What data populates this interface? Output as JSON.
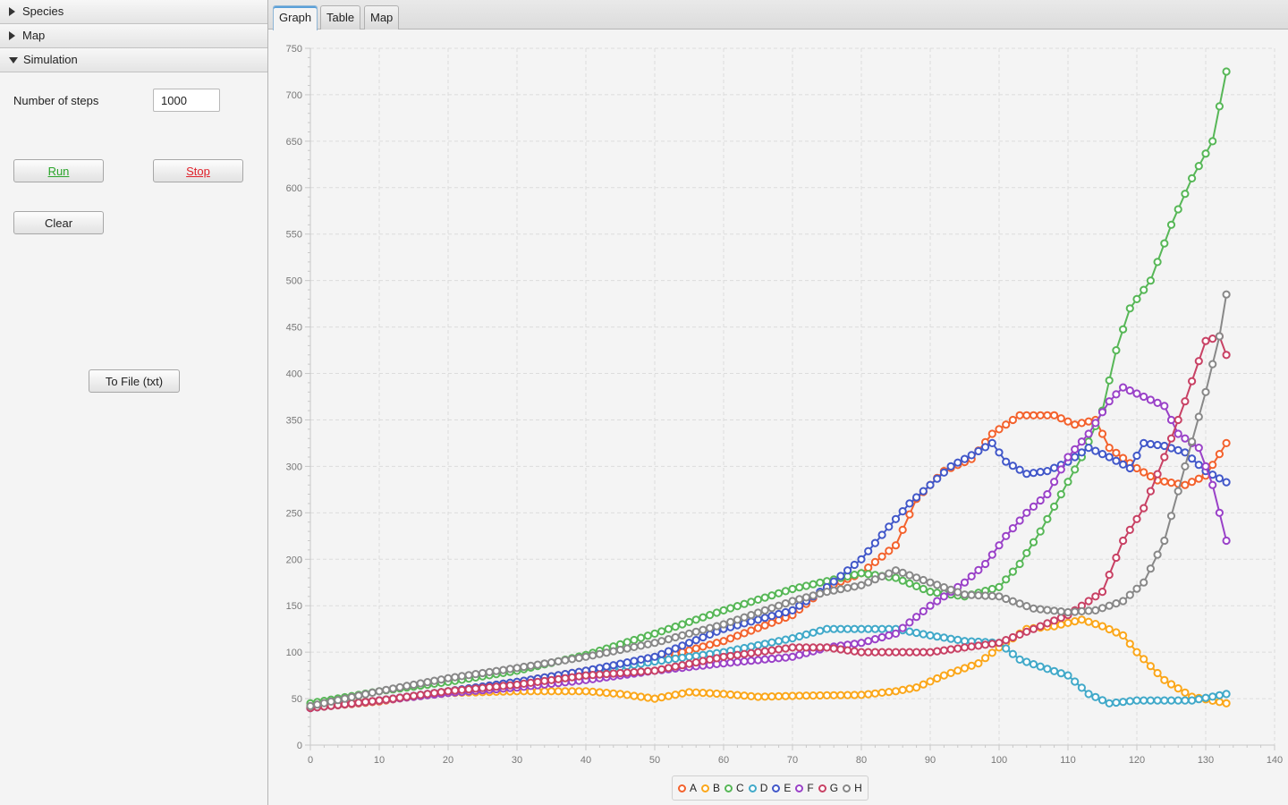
{
  "left": {
    "accordion": [
      {
        "label": "Species",
        "expanded": false
      },
      {
        "label": "Map",
        "expanded": false
      },
      {
        "label": "Simulation",
        "expanded": true
      }
    ],
    "simulation": {
      "steps_label": "Number of steps",
      "steps_value": "1000",
      "run_label": "Run",
      "stop_label": "Stop",
      "clear_label": "Clear",
      "tofile_label": "To File (txt)"
    }
  },
  "tabs": [
    {
      "label": "Graph",
      "active": true
    },
    {
      "label": "Table",
      "active": false
    },
    {
      "label": "Map",
      "active": false
    }
  ],
  "chart_data": {
    "type": "line",
    "title": "",
    "xlabel": "",
    "ylabel": "",
    "xlim": [
      0,
      140
    ],
    "ylim": [
      0,
      750
    ],
    "x_ticks": [
      0,
      10,
      20,
      30,
      40,
      50,
      60,
      70,
      80,
      90,
      100,
      110,
      120,
      130,
      140
    ],
    "y_ticks": [
      0,
      50,
      100,
      150,
      200,
      250,
      300,
      350,
      400,
      450,
      500,
      550,
      600,
      650,
      700,
      750
    ],
    "grid": true,
    "legend_position": "bottom-center",
    "series": [
      {
        "name": "A",
        "color": "#f3622d",
        "points": [
          [
            0,
            40
          ],
          [
            10,
            47
          ],
          [
            20,
            58
          ],
          [
            30,
            68
          ],
          [
            40,
            80
          ],
          [
            50,
            92
          ],
          [
            60,
            112
          ],
          [
            70,
            140
          ],
          [
            75,
            170
          ],
          [
            80,
            185
          ],
          [
            85,
            215
          ],
          [
            88,
            265
          ],
          [
            92,
            295
          ],
          [
            96,
            308
          ],
          [
            99,
            335
          ],
          [
            103,
            355
          ],
          [
            108,
            355
          ],
          [
            111,
            345
          ],
          [
            114,
            350
          ],
          [
            116,
            320
          ],
          [
            120,
            298
          ],
          [
            123,
            285
          ],
          [
            127,
            280
          ],
          [
            130,
            290
          ],
          [
            133,
            325
          ]
        ]
      },
      {
        "name": "B",
        "color": "#fba71b",
        "points": [
          [
            0,
            42
          ],
          [
            10,
            48
          ],
          [
            20,
            56
          ],
          [
            30,
            58
          ],
          [
            40,
            58
          ],
          [
            45,
            55
          ],
          [
            50,
            50
          ],
          [
            55,
            57
          ],
          [
            60,
            55
          ],
          [
            65,
            52
          ],
          [
            70,
            53
          ],
          [
            80,
            54
          ],
          [
            85,
            58
          ],
          [
            88,
            62
          ],
          [
            92,
            75
          ],
          [
            97,
            88
          ],
          [
            100,
            105
          ],
          [
            104,
            125
          ],
          [
            108,
            128
          ],
          [
            112,
            135
          ],
          [
            115,
            128
          ],
          [
            118,
            118
          ],
          [
            120,
            100
          ],
          [
            124,
            70
          ],
          [
            128,
            52
          ],
          [
            133,
            45
          ]
        ]
      },
      {
        "name": "C",
        "color": "#57b757",
        "points": [
          [
            0,
            45
          ],
          [
            10,
            58
          ],
          [
            20,
            68
          ],
          [
            30,
            80
          ],
          [
            40,
            97
          ],
          [
            50,
            120
          ],
          [
            60,
            145
          ],
          [
            70,
            168
          ],
          [
            80,
            185
          ],
          [
            85,
            180
          ],
          [
            90,
            165
          ],
          [
            95,
            160
          ],
          [
            100,
            170
          ],
          [
            103,
            195
          ],
          [
            106,
            230
          ],
          [
            109,
            270
          ],
          [
            112,
            310
          ],
          [
            115,
            360
          ],
          [
            117,
            425
          ],
          [
            119,
            470
          ],
          [
            122,
            500
          ],
          [
            125,
            560
          ],
          [
            128,
            610
          ],
          [
            131,
            650
          ],
          [
            133,
            725
          ]
        ]
      },
      {
        "name": "D",
        "color": "#41a9c9",
        "points": [
          [
            0,
            40
          ],
          [
            10,
            48
          ],
          [
            20,
            58
          ],
          [
            30,
            68
          ],
          [
            40,
            78
          ],
          [
            50,
            90
          ],
          [
            60,
            100
          ],
          [
            70,
            115
          ],
          [
            75,
            125
          ],
          [
            80,
            125
          ],
          [
            85,
            125
          ],
          [
            90,
            118
          ],
          [
            95,
            112
          ],
          [
            100,
            110
          ],
          [
            103,
            92
          ],
          [
            107,
            82
          ],
          [
            110,
            75
          ],
          [
            113,
            55
          ],
          [
            116,
            45
          ],
          [
            120,
            48
          ],
          [
            124,
            48
          ],
          [
            128,
            48
          ],
          [
            133,
            55
          ]
        ]
      },
      {
        "name": "E",
        "color": "#4258c9",
        "points": [
          [
            0,
            40
          ],
          [
            10,
            48
          ],
          [
            20,
            58
          ],
          [
            30,
            68
          ],
          [
            40,
            80
          ],
          [
            50,
            95
          ],
          [
            60,
            125
          ],
          [
            70,
            145
          ],
          [
            75,
            170
          ],
          [
            80,
            200
          ],
          [
            84,
            235
          ],
          [
            87,
            260
          ],
          [
            90,
            280
          ],
          [
            93,
            300
          ],
          [
            96,
            312
          ],
          [
            99,
            325
          ],
          [
            101,
            305
          ],
          [
            104,
            292
          ],
          [
            107,
            295
          ],
          [
            110,
            305
          ],
          [
            113,
            320
          ],
          [
            116,
            310
          ],
          [
            119,
            298
          ],
          [
            121,
            325
          ],
          [
            124,
            322
          ],
          [
            127,
            315
          ],
          [
            130,
            295
          ],
          [
            133,
            283
          ]
        ]
      },
      {
        "name": "F",
        "color": "#9a42c8",
        "points": [
          [
            0,
            40
          ],
          [
            10,
            48
          ],
          [
            20,
            56
          ],
          [
            30,
            62
          ],
          [
            40,
            70
          ],
          [
            50,
            80
          ],
          [
            60,
            88
          ],
          [
            70,
            95
          ],
          [
            75,
            105
          ],
          [
            80,
            110
          ],
          [
            85,
            120
          ],
          [
            90,
            150
          ],
          [
            95,
            175
          ],
          [
            98,
            195
          ],
          [
            101,
            225
          ],
          [
            104,
            250
          ],
          [
            107,
            270
          ],
          [
            110,
            310
          ],
          [
            113,
            335
          ],
          [
            116,
            370
          ],
          [
            118,
            385
          ],
          [
            121,
            375
          ],
          [
            124,
            365
          ],
          [
            126,
            335
          ],
          [
            129,
            320
          ],
          [
            131,
            280
          ],
          [
            133,
            220
          ]
        ]
      },
      {
        "name": "G",
        "color": "#c84164",
        "points": [
          [
            0,
            40
          ],
          [
            10,
            48
          ],
          [
            20,
            58
          ],
          [
            30,
            65
          ],
          [
            40,
            75
          ],
          [
            50,
            80
          ],
          [
            60,
            95
          ],
          [
            65,
            100
          ],
          [
            70,
            105
          ],
          [
            75,
            105
          ],
          [
            80,
            100
          ],
          [
            85,
            100
          ],
          [
            90,
            100
          ],
          [
            95,
            105
          ],
          [
            100,
            110
          ],
          [
            105,
            125
          ],
          [
            110,
            140
          ],
          [
            115,
            165
          ],
          [
            118,
            220
          ],
          [
            121,
            255
          ],
          [
            124,
            310
          ],
          [
            127,
            370
          ],
          [
            130,
            435
          ],
          [
            132,
            440
          ],
          [
            133,
            420
          ]
        ]
      },
      {
        "name": "H",
        "color": "#888888",
        "points": [
          [
            0,
            42
          ],
          [
            10,
            58
          ],
          [
            20,
            72
          ],
          [
            30,
            83
          ],
          [
            40,
            95
          ],
          [
            50,
            110
          ],
          [
            60,
            130
          ],
          [
            70,
            155
          ],
          [
            75,
            165
          ],
          [
            80,
            172
          ],
          [
            85,
            188
          ],
          [
            90,
            175
          ],
          [
            95,
            162
          ],
          [
            100,
            160
          ],
          [
            105,
            147
          ],
          [
            110,
            143
          ],
          [
            114,
            145
          ],
          [
            118,
            155
          ],
          [
            121,
            175
          ],
          [
            124,
            220
          ],
          [
            127,
            300
          ],
          [
            130,
            380
          ],
          [
            132,
            440
          ],
          [
            133,
            485
          ]
        ]
      }
    ]
  }
}
